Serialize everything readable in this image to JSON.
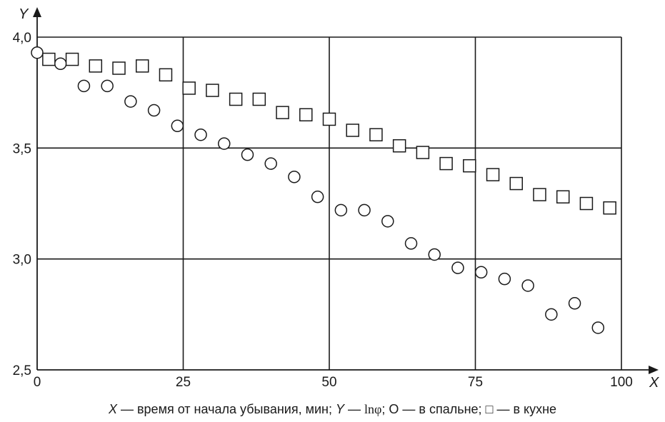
{
  "chart_data": {
    "type": "scatter",
    "xlabel": "X",
    "ylabel": "Y",
    "xlim": [
      0,
      100
    ],
    "ylim": [
      2.5,
      4.0
    ],
    "grid": true,
    "x_ticks": [
      "0",
      "25",
      "50",
      "75",
      "100"
    ],
    "y_ticks": [
      "2,5",
      "3,0",
      "3,5",
      "4,0"
    ],
    "series": [
      {
        "marker": "circle",
        "points": [
          [
            0,
            3.93
          ],
          [
            4,
            3.88
          ],
          [
            8,
            3.78
          ],
          [
            12,
            3.78
          ],
          [
            16,
            3.71
          ],
          [
            20,
            3.67
          ],
          [
            24,
            3.6
          ],
          [
            28,
            3.56
          ],
          [
            32,
            3.52
          ],
          [
            36,
            3.47
          ],
          [
            40,
            3.43
          ],
          [
            44,
            3.37
          ],
          [
            48,
            3.28
          ],
          [
            52,
            3.22
          ],
          [
            56,
            3.22
          ],
          [
            60,
            3.17
          ],
          [
            64,
            3.07
          ],
          [
            68,
            3.02
          ],
          [
            72,
            2.96
          ],
          [
            76,
            2.94
          ],
          [
            80,
            2.91
          ],
          [
            84,
            2.88
          ],
          [
            88,
            2.75
          ],
          [
            92,
            2.8
          ],
          [
            96,
            2.69
          ]
        ]
      },
      {
        "marker": "square",
        "points": [
          [
            2,
            3.9
          ],
          [
            6,
            3.9
          ],
          [
            10,
            3.87
          ],
          [
            14,
            3.86
          ],
          [
            18,
            3.87
          ],
          [
            22,
            3.83
          ],
          [
            26,
            3.77
          ],
          [
            30,
            3.76
          ],
          [
            34,
            3.72
          ],
          [
            38,
            3.72
          ],
          [
            42,
            3.66
          ],
          [
            46,
            3.65
          ],
          [
            50,
            3.63
          ],
          [
            54,
            3.58
          ],
          [
            58,
            3.56
          ],
          [
            62,
            3.51
          ],
          [
            66,
            3.48
          ],
          [
            70,
            3.43
          ],
          [
            74,
            3.42
          ],
          [
            78,
            3.38
          ],
          [
            82,
            3.34
          ],
          [
            86,
            3.29
          ],
          [
            90,
            3.28
          ],
          [
            94,
            3.25
          ],
          [
            98,
            3.23
          ]
        ]
      }
    ]
  },
  "caption": {
    "x_sym": "X",
    "x_desc": " — время от начала убывания, мин; ",
    "y_sym": "Y",
    "y_dash": " — ",
    "y_desc": "lnφ",
    "circle_sym": "; О",
    "circle_desc": " — в спальне; ",
    "square_sym": "□",
    "square_desc": " — в кухне"
  }
}
